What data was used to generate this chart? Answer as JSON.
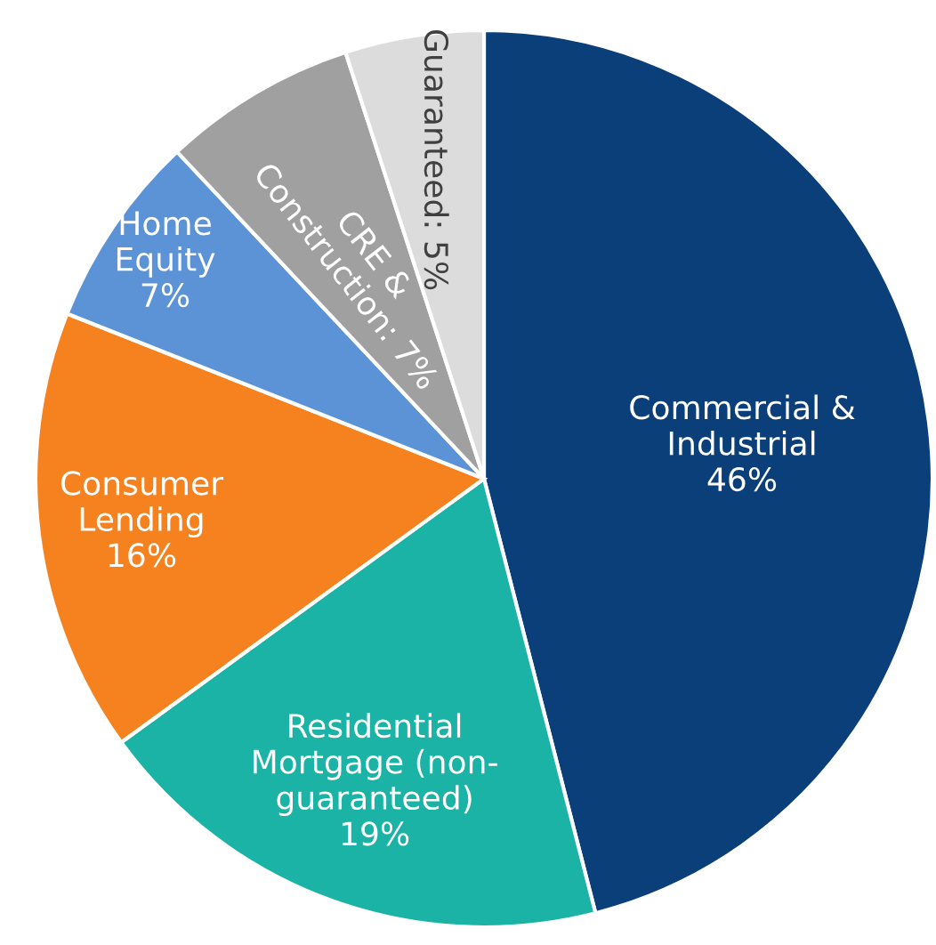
{
  "chart_data": {
    "type": "pie",
    "categories": [
      "Commercial &\nIndustrial",
      "Residential\nMortgage (non-\nguaranteed)",
      "Consumer\nLending",
      "Home\nEquity",
      "CRE &\nConstruction",
      "Guaranteed"
    ],
    "values": [
      46,
      19,
      16,
      7,
      7,
      5
    ],
    "value_labels": [
      "46%",
      "19%",
      "16%",
      "7%",
      "7%",
      "5%"
    ],
    "colors": [
      "#0b3f7a",
      "#1ab3a6",
      "#f5821f",
      "#5b93d6",
      "#a0a0a0",
      "#dcdcdc"
    ],
    "legend": false
  }
}
